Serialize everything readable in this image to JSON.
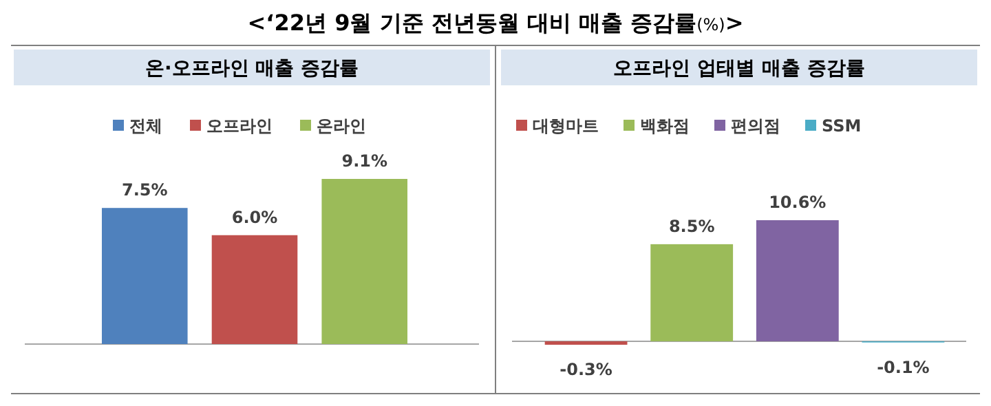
{
  "chart_data": [
    {
      "type": "bar",
      "title": "<‘22년 9월 기준 전년동월 대비 매출 증감률(%)>",
      "subtitle": "온·오프라인 매출 증감률",
      "categories": [
        null
      ],
      "legend": "top",
      "series": [
        {
          "name": "전체",
          "color": "#4f81bd",
          "values": [
            7.5
          ],
          "value_labels": [
            "7.5%"
          ]
        },
        {
          "name": "오프라인",
          "color": "#c0504d",
          "values": [
            6.0
          ],
          "value_labels": [
            "6.0%"
          ]
        },
        {
          "name": "온라인",
          "color": "#9bbb59",
          "values": [
            9.1
          ],
          "value_labels": [
            "9.1%"
          ]
        }
      ]
    },
    {
      "type": "bar",
      "title": "오프라인 업태별 매출 증감률",
      "categories": [
        null
      ],
      "legend": "top",
      "series": [
        {
          "name": "대형마트",
          "color": "#c0504d",
          "values": [
            -0.3
          ],
          "value_labels": [
            "-0.3%"
          ]
        },
        {
          "name": "백화점",
          "color": "#9bbb59",
          "values": [
            8.5
          ],
          "value_labels": [
            "8.5%"
          ]
        },
        {
          "name": "편의점",
          "color": "#8064a2",
          "values": [
            10.6
          ],
          "value_labels": [
            "10.6%"
          ]
        },
        {
          "name": "SSM",
          "color": "#4bacc6",
          "values": [
            -0.1
          ],
          "value_labels": [
            "-0.1%"
          ]
        }
      ]
    }
  ]
}
